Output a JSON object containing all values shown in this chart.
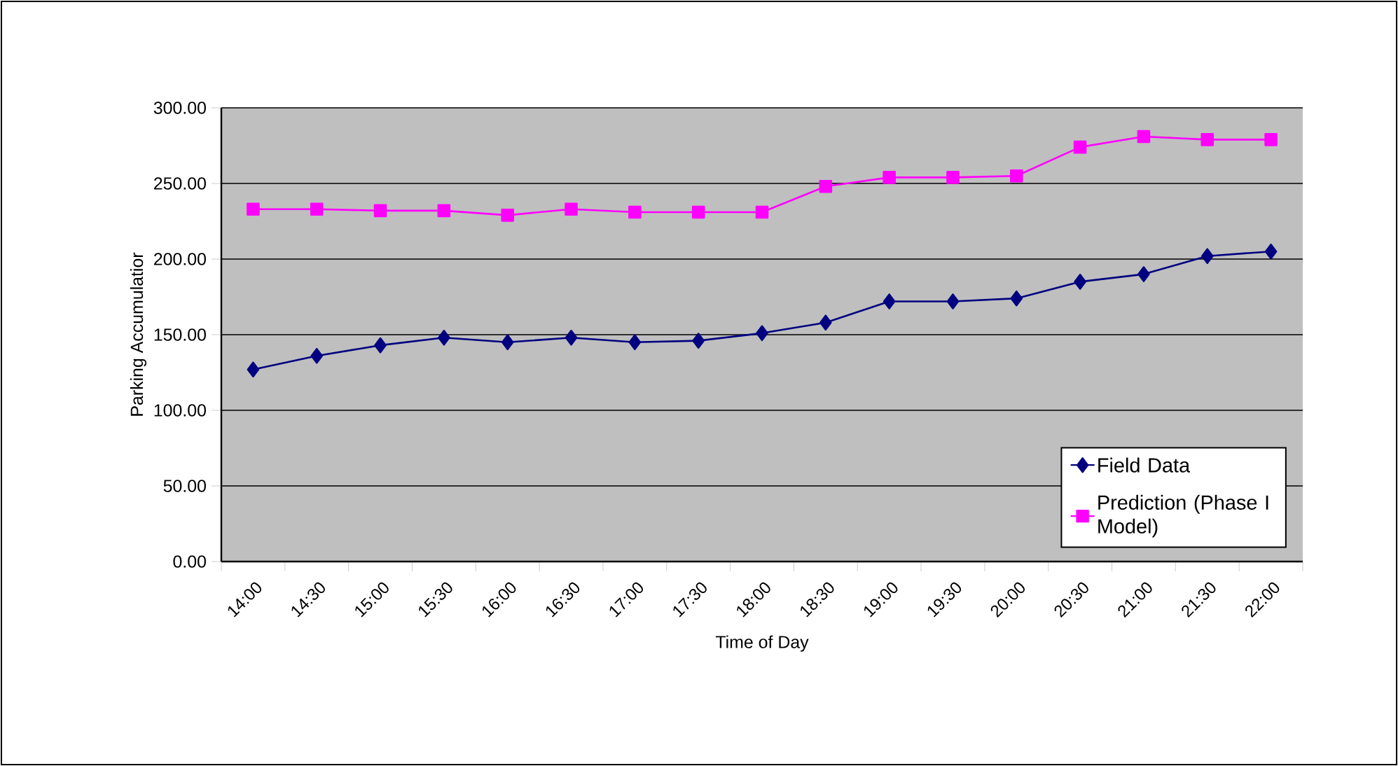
{
  "chart_data": {
    "type": "line",
    "xlabel": "Time of Day",
    "ylabel": "Parking Accumulatior",
    "categories": [
      "14:00",
      "14:30",
      "15:00",
      "15:30",
      "16:00",
      "16:30",
      "17:00",
      "17:30",
      "18:00",
      "18:30",
      "19:00",
      "19:30",
      "20:00",
      "20:30",
      "21:00",
      "21:30",
      "22:00"
    ],
    "series": [
      {
        "name": "Field Data",
        "color": "#000080",
        "marker": "diamond",
        "values": [
          127,
          136,
          143,
          148,
          145,
          148,
          145,
          146,
          151,
          158,
          172,
          172,
          174,
          185,
          190,
          202,
          205
        ]
      },
      {
        "name": "Prediction (Phase I Model)",
        "color": "#ff00ff",
        "marker": "square",
        "values": [
          233,
          233,
          232,
          232,
          229,
          233,
          231,
          231,
          231,
          248,
          254,
          254,
          255,
          274,
          281,
          279,
          279
        ]
      }
    ],
    "ylim": [
      0,
      300
    ],
    "yticks": [
      {
        "value": 0,
        "label": "0.00"
      },
      {
        "value": 50,
        "label": "50.00"
      },
      {
        "value": 100,
        "label": "100.00"
      },
      {
        "value": 150,
        "label": "150.00"
      },
      {
        "value": 200,
        "label": "200.00"
      },
      {
        "value": 250,
        "label": "250.00"
      },
      {
        "value": 300,
        "label": "300.00"
      }
    ],
    "grid": "y",
    "legend": "bottom right",
    "line_style": "solid"
  }
}
